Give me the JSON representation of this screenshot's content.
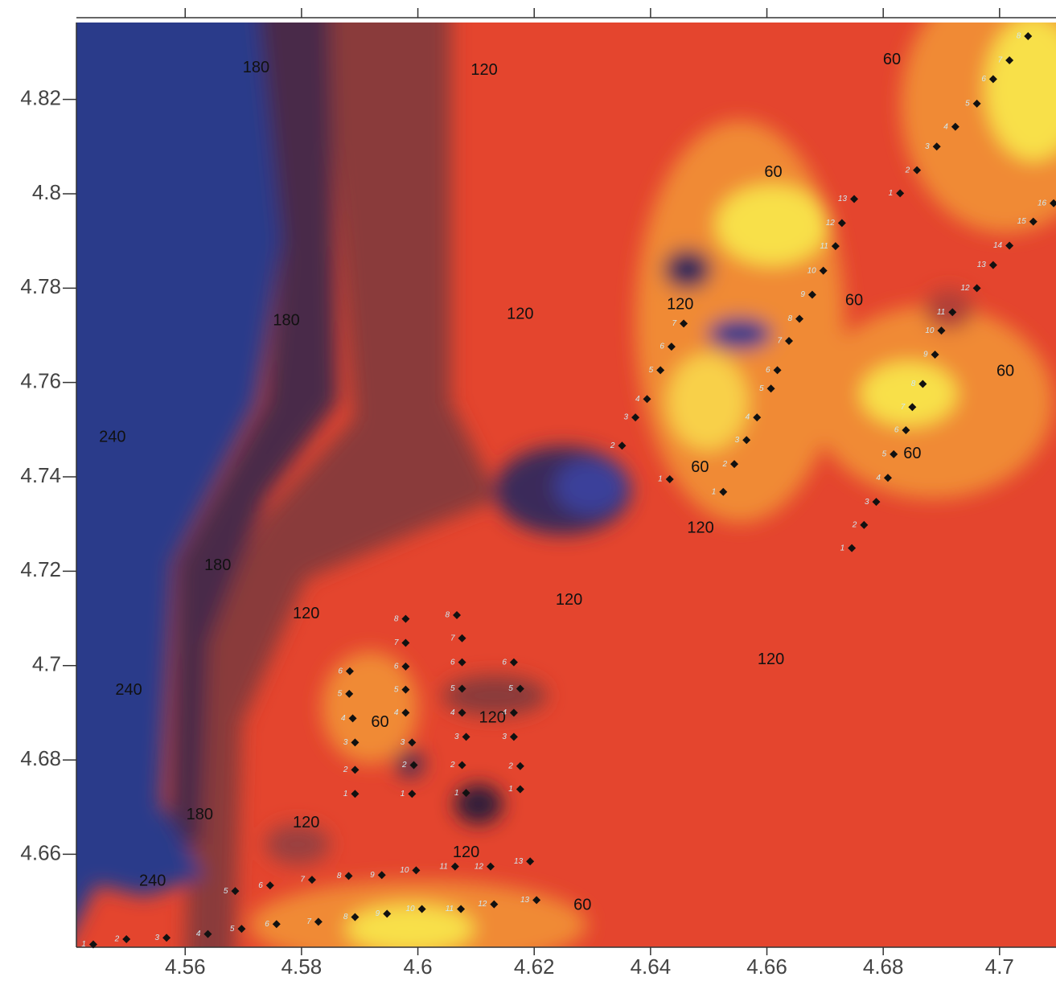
{
  "chart_data": {
    "type": "contour",
    "xlim": [
      4.5413,
      4.7097
    ],
    "ylim": [
      4.6403,
      4.8363
    ],
    "xticks": [
      4.56,
      4.58,
      4.6,
      4.62,
      4.64,
      4.66,
      4.68,
      4.7
    ],
    "yticks": [
      4.66,
      4.68,
      4.7,
      4.72,
      4.74,
      4.76,
      4.78,
      4.8,
      4.82
    ],
    "contour_labels": [
      {
        "level": 180,
        "x": 4.5722,
        "y": 4.8266
      },
      {
        "level": 120,
        "x": 4.6114,
        "y": 4.8261
      },
      {
        "level": 60,
        "x": 4.6815,
        "y": 4.8283
      },
      {
        "level": 60,
        "x": 4.6611,
        "y": 4.8045
      },
      {
        "level": 120,
        "x": 4.6176,
        "y": 4.7744
      },
      {
        "level": 180,
        "x": 4.5774,
        "y": 4.773
      },
      {
        "level": 120,
        "x": 4.6451,
        "y": 4.7764
      },
      {
        "level": 60,
        "x": 4.675,
        "y": 4.7773
      },
      {
        "level": 60,
        "x": 4.701,
        "y": 4.7623
      },
      {
        "level": 240,
        "x": 4.5475,
        "y": 4.7483
      },
      {
        "level": 60,
        "x": 4.685,
        "y": 4.7448
      },
      {
        "level": 60,
        "x": 4.6485,
        "y": 4.7419
      },
      {
        "level": 120,
        "x": 4.6486,
        "y": 4.7291
      },
      {
        "level": 180,
        "x": 4.5656,
        "y": 4.7211
      },
      {
        "level": 120,
        "x": 4.5808,
        "y": 4.7109
      },
      {
        "level": 120,
        "x": 4.626,
        "y": 4.7138
      },
      {
        "level": 120,
        "x": 4.6607,
        "y": 4.7012
      },
      {
        "level": 240,
        "x": 4.5503,
        "y": 4.6947
      },
      {
        "level": 60,
        "x": 4.5935,
        "y": 4.6879
      },
      {
        "level": 120,
        "x": 4.6128,
        "y": 4.6888
      },
      {
        "level": 180,
        "x": 4.5625,
        "y": 4.6683
      },
      {
        "level": 120,
        "x": 4.5808,
        "y": 4.6666
      },
      {
        "level": 120,
        "x": 4.6083,
        "y": 4.6603
      },
      {
        "level": 240,
        "x": 4.5544,
        "y": 4.6542
      },
      {
        "level": 60,
        "x": 4.6283,
        "y": 4.6491
      }
    ],
    "survey_lines": [
      {
        "labels": [
          1,
          2,
          3,
          4,
          5,
          6
        ],
        "x": [
          4.5892,
          4.5892,
          4.5892,
          4.5888,
          4.5882,
          4.5883
        ],
        "y": [
          4.6728,
          4.6779,
          4.6837,
          4.6888,
          4.694,
          4.6988
        ]
      },
      {
        "labels": [
          1,
          2,
          3,
          4,
          5,
          6,
          7,
          8
        ],
        "x": [
          4.599,
          4.5993,
          4.599,
          4.5979,
          4.5979,
          4.5979,
          4.5979,
          4.5979
        ],
        "y": [
          4.6728,
          4.6789,
          4.6837,
          4.69,
          4.6949,
          4.6998,
          4.7048,
          4.7099
        ]
      },
      {
        "labels": [
          1,
          2,
          3,
          4,
          5,
          6,
          7,
          8
        ],
        "x": [
          4.6083,
          4.6076,
          4.6083,
          4.6076,
          4.6076,
          4.6076,
          4.6076,
          4.6067
        ],
        "y": [
          4.673,
          4.6789,
          4.6849,
          4.69,
          4.6951,
          4.7007,
          4.7058,
          4.7107
        ]
      },
      {
        "labels": [
          1,
          2,
          3,
          4,
          5,
          6
        ],
        "x": [
          4.6176,
          4.6176,
          4.6165,
          4.6165,
          4.6176,
          4.6165
        ],
        "y": [
          4.6738,
          4.6787,
          4.6849,
          4.69,
          4.6951,
          4.7007
        ]
      },
      {
        "labels": [
          1,
          2,
          3,
          4,
          5,
          6,
          7
        ],
        "x": [
          4.6433,
          4.6351,
          4.6374,
          4.6394,
          4.6417,
          4.6436,
          4.6457
        ],
        "y": [
          4.7395,
          4.7466,
          4.7526,
          4.7565,
          4.7626,
          4.7676,
          4.7725
        ]
      },
      {
        "labels": [
          1,
          2,
          3,
          4,
          5,
          6,
          7,
          8,
          9,
          10,
          11,
          12,
          13
        ],
        "x": [
          4.6525,
          4.6544,
          4.6565,
          4.6583,
          4.6607,
          4.6618,
          4.6638,
          4.6656,
          4.6678,
          4.6697,
          4.6718,
          4.6729,
          4.675
        ],
        "y": [
          4.7368,
          4.7427,
          4.7478,
          4.7526,
          4.7587,
          4.7626,
          4.7688,
          4.7735,
          4.7786,
          4.7837,
          4.7889,
          4.7938,
          4.7989
        ]
      },
      {
        "labels": [
          1,
          2,
          3,
          4,
          5,
          6,
          7,
          8,
          9,
          10,
          11,
          12,
          13,
          14,
          15,
          16
        ],
        "x": [
          4.6746,
          4.6767,
          4.6788,
          4.6808,
          4.6818,
          4.6839,
          4.685,
          4.6868,
          4.6889,
          4.69,
          4.6919,
          4.6961,
          4.6989,
          4.7017,
          4.7058,
          4.7093
        ],
        "y": [
          4.7249,
          4.7298,
          4.7347,
          4.7398,
          4.7448,
          4.7499,
          4.7548,
          4.7597,
          4.7659,
          4.771,
          4.7749,
          4.78,
          4.7849,
          4.789,
          4.7941,
          4.798
        ]
      },
      {
        "labels": [
          1,
          2,
          3,
          4,
          5,
          6,
          7,
          8
        ],
        "x": [
          4.6829,
          4.6858,
          4.6892,
          4.6924,
          4.6961,
          4.6989,
          4.7017,
          4.7049
        ],
        "y": [
          4.8001,
          4.805,
          4.81,
          4.8142,
          4.8191,
          4.8243,
          4.8283,
          4.8334
        ]
      },
      {
        "labels": [
          1,
          2,
          3,
          4,
          5,
          6,
          7,
          8,
          9,
          10,
          11,
          12,
          13
        ],
        "x": [
          4.5442,
          4.5499,
          4.5568,
          4.5639,
          4.5697,
          4.5757,
          4.5829,
          4.5892,
          4.5947,
          4.6007,
          4.6074,
          4.6131,
          4.6204
        ],
        "y": [
          4.6409,
          4.642,
          4.6423,
          4.6431,
          4.6442,
          4.6452,
          4.6457,
          4.6467,
          4.6474,
          4.6484,
          4.6484,
          4.6494,
          4.6503
        ]
      },
      {
        "labels": [
          5,
          6,
          7,
          8,
          9,
          10,
          11,
          12,
          13
        ],
        "x": [
          4.5686,
          4.5746,
          4.5818,
          4.5881,
          4.5938,
          4.5997,
          4.6064,
          4.6125,
          4.6193
        ],
        "y": [
          4.6522,
          4.6534,
          4.6546,
          4.6554,
          4.6556,
          4.6566,
          4.6574,
          4.6574,
          4.6585
        ]
      }
    ]
  }
}
